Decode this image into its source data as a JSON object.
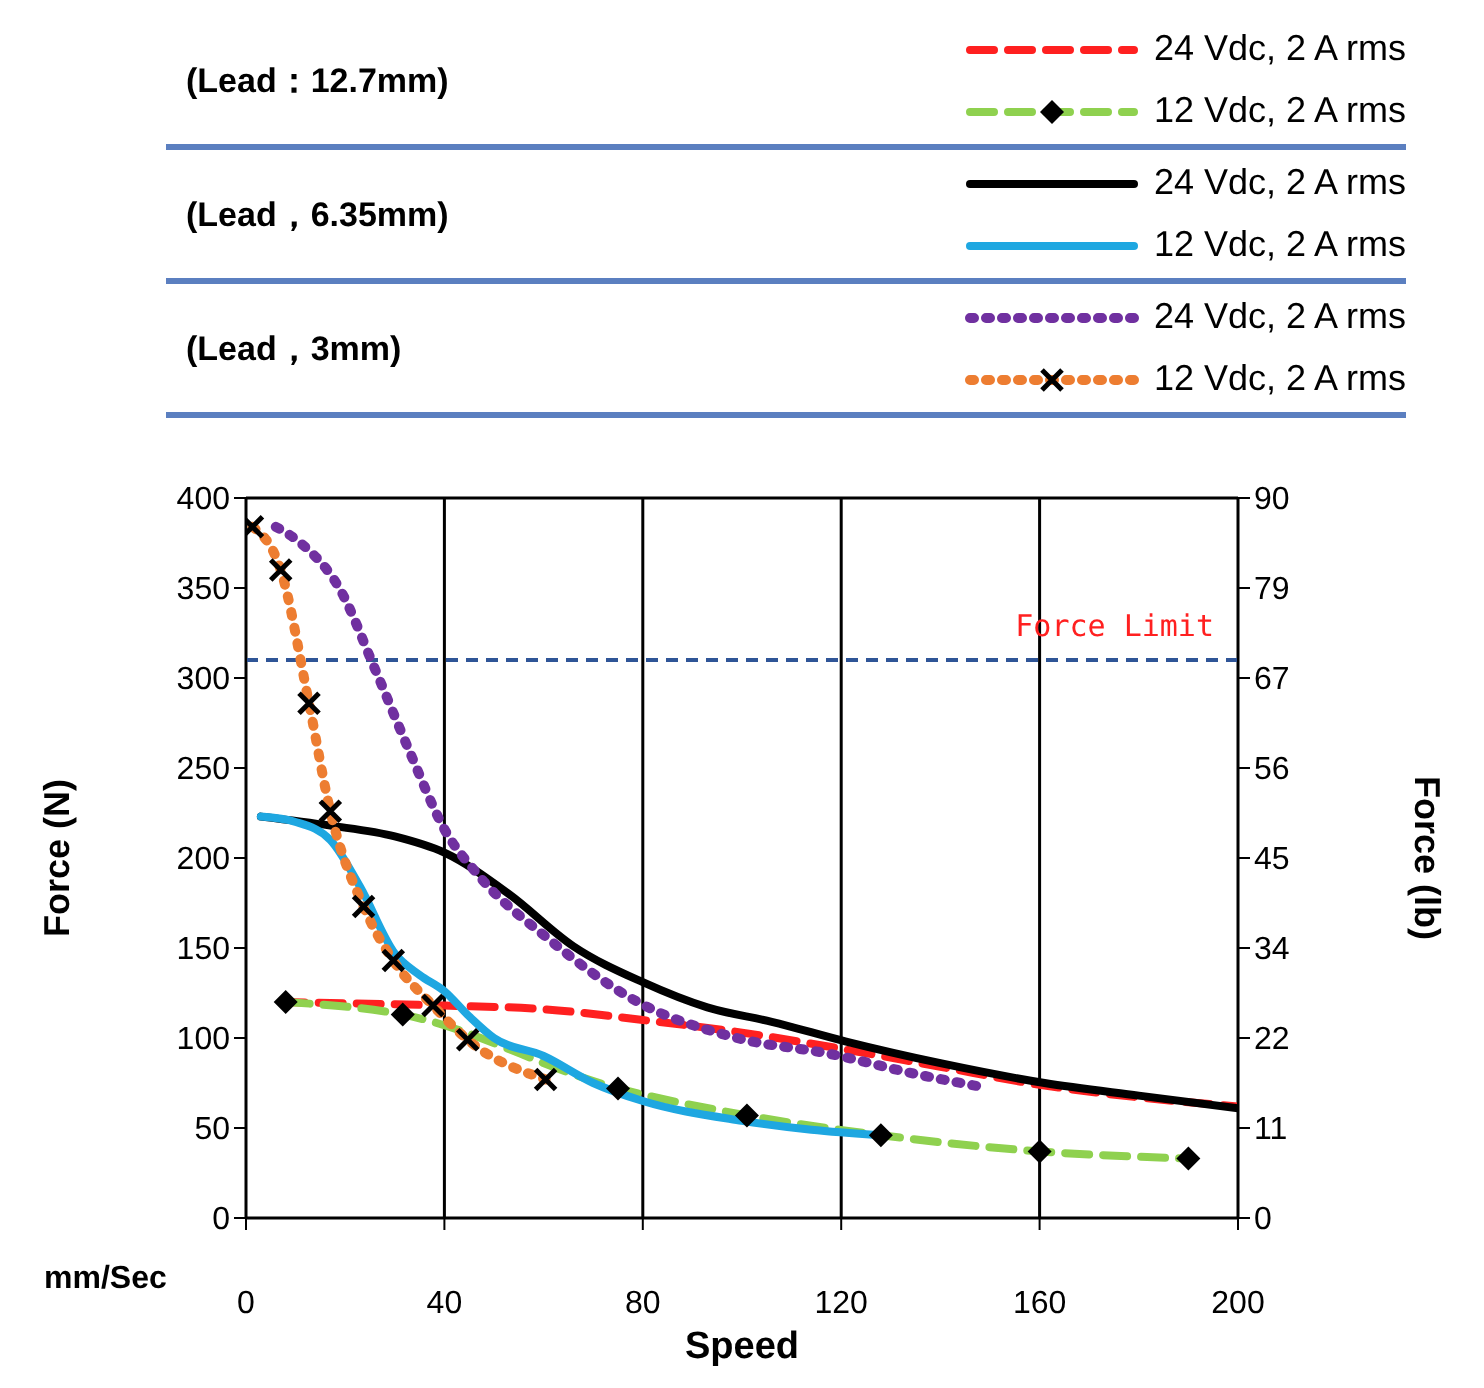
{
  "chart_data": {
    "type": "line",
    "xlabel": "Speed",
    "ylabel": "Force (N)",
    "y2label": "Force (lb)",
    "annotations": [
      "(Lead：12.7mm)",
      "(Lead，6.35mm)",
      "(Lead，3mm)",
      "mm/Sec"
    ],
    "xlim": [
      0,
      200
    ],
    "xticks": [
      0,
      40,
      80,
      120,
      160,
      200
    ],
    "ylim": [
      0,
      400
    ],
    "yticks": [
      0,
      50,
      100,
      150,
      200,
      250,
      300,
      350,
      400
    ],
    "y2lim": [
      0,
      90
    ],
    "y2ticks": [
      0,
      {
        "value": 11.25,
        "label": "11"
      },
      {
        "value": 22.5,
        "label": "22"
      },
      {
        "value": 33.75,
        "label": "34"
      },
      {
        "value": 45,
        "label": "45"
      },
      {
        "value": 56.25,
        "label": "56"
      },
      {
        "value": 67.5,
        "label": "67"
      },
      {
        "value": 78.75,
        "label": "79"
      },
      90
    ],
    "grid": true,
    "legend": "top",
    "ref_lines": [
      {
        "axis": "y",
        "value": 310,
        "label": "Force  Limit",
        "color": "#2f5597",
        "line_style": "dashed"
      }
    ],
    "series": [
      {
        "name": "24 Vdc, 2 A rms",
        "color": "#ff2020",
        "line_style": "dashed",
        "marker": "none",
        "x": [
          7,
          40,
          60,
          80,
          100,
          120,
          140,
          160,
          180,
          200
        ],
        "values": [
          120,
          118,
          116,
          110,
          103,
          94,
          84,
          74,
          67,
          62
        ]
      },
      {
        "name": "12 Vdc, 2 A rms",
        "color": "#8fd14f",
        "line_style": "dashed",
        "marker": "diamond",
        "x": [
          8,
          31.6,
          75,
          101,
          128,
          160,
          190
        ],
        "values": [
          120,
          113,
          72,
          57,
          46,
          37,
          33
        ]
      },
      {
        "name": "24 Vdc, 2 A rms",
        "color": "#000000",
        "line_style": "solid",
        "marker": "none",
        "x": [
          3,
          17,
          30,
          40,
          53,
          66,
          80,
          93,
          106,
          121,
          140,
          161,
          180,
          200
        ],
        "values": [
          223,
          218,
          212,
          203,
          180,
          151,
          131,
          117,
          109,
          98,
          86,
          75,
          68,
          61
        ]
      },
      {
        "name": "12 Vdc, 2 A rms",
        "color": "#1ea7e1",
        "line_style": "solid",
        "marker": "none",
        "x": [
          3,
          10,
          17,
          23,
          30,
          35,
          40,
          45,
          50,
          60,
          70,
          80,
          100,
          114,
          128
        ],
        "values": [
          223,
          220,
          210,
          184,
          147,
          135,
          126,
          112,
          100,
          90,
          75,
          65,
          54,
          49,
          46
        ]
      },
      {
        "name": "24 Vdc, 2 A rms",
        "color": "#7030a0",
        "line_style": "dotted",
        "marker": "none",
        "x": [
          6,
          11,
          19,
          26,
          33,
          40,
          47,
          61,
          79,
          99,
          118,
          135,
          148
        ],
        "values": [
          384,
          375,
          349,
          305,
          259,
          216,
          190,
          155,
          120,
          100,
          91,
          80,
          73
        ]
      },
      {
        "name": "12 Vdc, 2 A rms",
        "color": "#ed7d31",
        "line_style": "dotted",
        "marker": "cross",
        "x": [
          1.3,
          7,
          12.7,
          17,
          23.7,
          29.7,
          37.7,
          44.7,
          60.4
        ],
        "values": [
          384,
          360,
          286,
          226,
          173,
          143,
          118,
          99,
          77
        ]
      }
    ]
  }
}
